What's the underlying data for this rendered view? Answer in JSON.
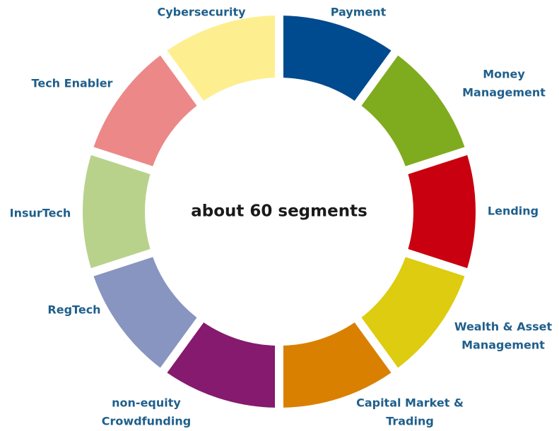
{
  "center_text": "about 60 segments",
  "nodes": [
    {
      "label": [
        "Payment"
      ],
      "color": "#004a8f"
    },
    {
      "label": [
        "Money",
        "Management"
      ],
      "color": "#7fab1f"
    },
    {
      "label": [
        "Lending"
      ],
      "color": "#c8000f"
    },
    {
      "label": [
        "Wealth & Asset",
        "Management"
      ],
      "color": "#ddcc0f"
    },
    {
      "label": [
        "Capital Market &",
        "Trading"
      ],
      "color": "#d98000"
    },
    {
      "label": [
        "non-equity",
        "Crowdfunding"
      ],
      "color": "#851a6e"
    },
    {
      "label": [
        "RegTech"
      ],
      "color": "#8795c0"
    },
    {
      "label": [
        "InsurTech"
      ],
      "color": "#b8d28c"
    },
    {
      "label": [
        "Tech Enabler"
      ],
      "color": "#ec8888"
    },
    {
      "label": [
        "Cybersecurity"
      ],
      "color": "#fdef90"
    }
  ]
}
